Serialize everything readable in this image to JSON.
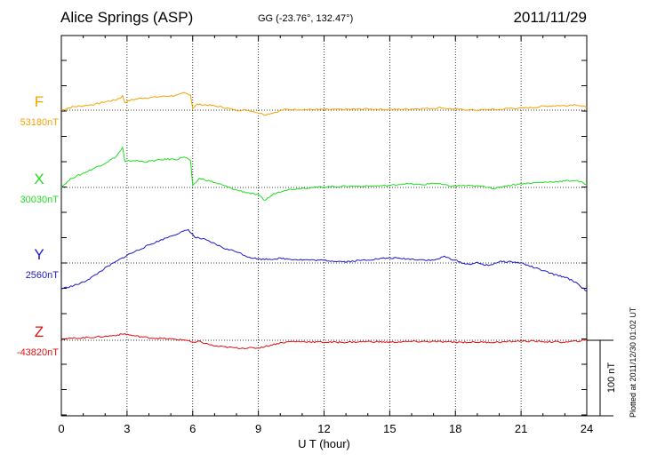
{
  "header": {
    "station": "Alice Springs (ASP)",
    "coords": "GG (-23.76°, 132.47°)",
    "date": "2011/11/29"
  },
  "footer": "Plotted at 2011/12/30 01:02 UT",
  "chart_data": {
    "type": "line",
    "xlabel": "U T (hour)",
    "xlim": [
      0,
      24
    ],
    "xticks": [
      0,
      3,
      6,
      9,
      12,
      15,
      18,
      21,
      24
    ],
    "grid": true,
    "scale_bar": "100 nT",
    "series": [
      {
        "name": "F",
        "baseline": "53180nT",
        "color": "#f5a300",
        "x": [
          0,
          0.5,
          1,
          1.5,
          2,
          2.5,
          2.8,
          2.9,
          3.2,
          3.7,
          4.2,
          4.8,
          5.3,
          5.6,
          5.9,
          6.0,
          6.2,
          6.7,
          7.3,
          8,
          8.5,
          9,
          9.3,
          9.8,
          10.2,
          10.8,
          11.5,
          12,
          13,
          14,
          15,
          16,
          17,
          17.3,
          17.8,
          18.3,
          19,
          19.5,
          20,
          20.5,
          21,
          21.5,
          22,
          22.5,
          23,
          23.5,
          24
        ],
        "y": [
          0,
          5,
          7,
          9,
          13,
          16,
          22,
          12,
          16,
          19,
          20,
          22,
          23,
          27,
          24,
          3,
          9,
          8,
          5,
          0,
          0,
          -4,
          -7,
          -3,
          1,
          1,
          1,
          1,
          1,
          2,
          1,
          2,
          3,
          4,
          2,
          1,
          0,
          1,
          1,
          3,
          3,
          4,
          6,
          7,
          7,
          9,
          4
        ]
      },
      {
        "name": "X",
        "baseline": "30030nT",
        "color": "#22dd22",
        "x": [
          0,
          0.5,
          1,
          1.5,
          2,
          2.5,
          2.8,
          2.9,
          3.3,
          3.8,
          4.3,
          4.8,
          5.3,
          5.6,
          5.9,
          6.0,
          6.3,
          6.8,
          7.5,
          8,
          8.5,
          9,
          9.3,
          9.7,
          10.2,
          11,
          12,
          13,
          14,
          15,
          15.7,
          16.5,
          17,
          17.8,
          18.3,
          19,
          19.5,
          19.8,
          20.2,
          21,
          22,
          23,
          23.5,
          24
        ],
        "y": [
          1,
          15,
          22,
          30,
          38,
          48,
          62,
          40,
          42,
          40,
          42,
          44,
          44,
          48,
          42,
          2,
          14,
          10,
          2,
          -4,
          -8,
          -12,
          -20,
          -10,
          -4,
          -1,
          1,
          2,
          2,
          3,
          6,
          4,
          7,
          2,
          3,
          2,
          1,
          -2,
          2,
          6,
          8,
          10,
          11,
          5
        ]
      },
      {
        "name": "Y",
        "baseline": "2560nT",
        "color": "#1a1acc",
        "x": [
          0,
          0.5,
          1,
          1.5,
          2,
          2.5,
          3,
          3.5,
          4,
          4.5,
          5,
          5.5,
          5.8,
          6.1,
          6.5,
          7,
          7.5,
          8,
          8.5,
          9,
          9.5,
          10,
          11,
          12,
          13,
          14,
          15,
          16,
          17,
          17.5,
          18,
          18.5,
          19,
          19.5,
          20,
          20.5,
          21,
          21.5,
          22,
          22.5,
          23,
          23.5,
          24
        ],
        "y": [
          -40,
          -36,
          -30,
          -20,
          -8,
          2,
          12,
          20,
          28,
          35,
          42,
          48,
          52,
          40,
          37,
          30,
          22,
          18,
          10,
          6,
          6,
          7,
          5,
          4,
          2,
          5,
          8,
          6,
          4,
          10,
          4,
          -2,
          0,
          -4,
          2,
          2,
          0,
          -6,
          -12,
          -18,
          -22,
          -30,
          -44
        ]
      },
      {
        "name": "Z",
        "baseline": "-43820nT",
        "color": "#dd1111",
        "x": [
          0,
          0.5,
          1,
          1.5,
          2,
          2.5,
          2.9,
          3.3,
          4,
          5,
          5.8,
          6.0,
          6.3,
          7,
          8,
          9,
          9.5,
          10,
          10.5,
          11,
          12,
          13,
          14,
          15,
          16,
          17,
          18,
          19,
          20,
          21,
          22,
          23,
          24
        ],
        "y": [
          2,
          3,
          4,
          5,
          6,
          8,
          10,
          7,
          4,
          2,
          0,
          -4,
          -2,
          -9,
          -12,
          -12,
          -8,
          -4,
          -2,
          -2,
          -3,
          -3,
          -2,
          -3,
          -2,
          -2,
          -3,
          -3,
          -3,
          -1,
          -2,
          -3,
          0
        ]
      }
    ]
  }
}
